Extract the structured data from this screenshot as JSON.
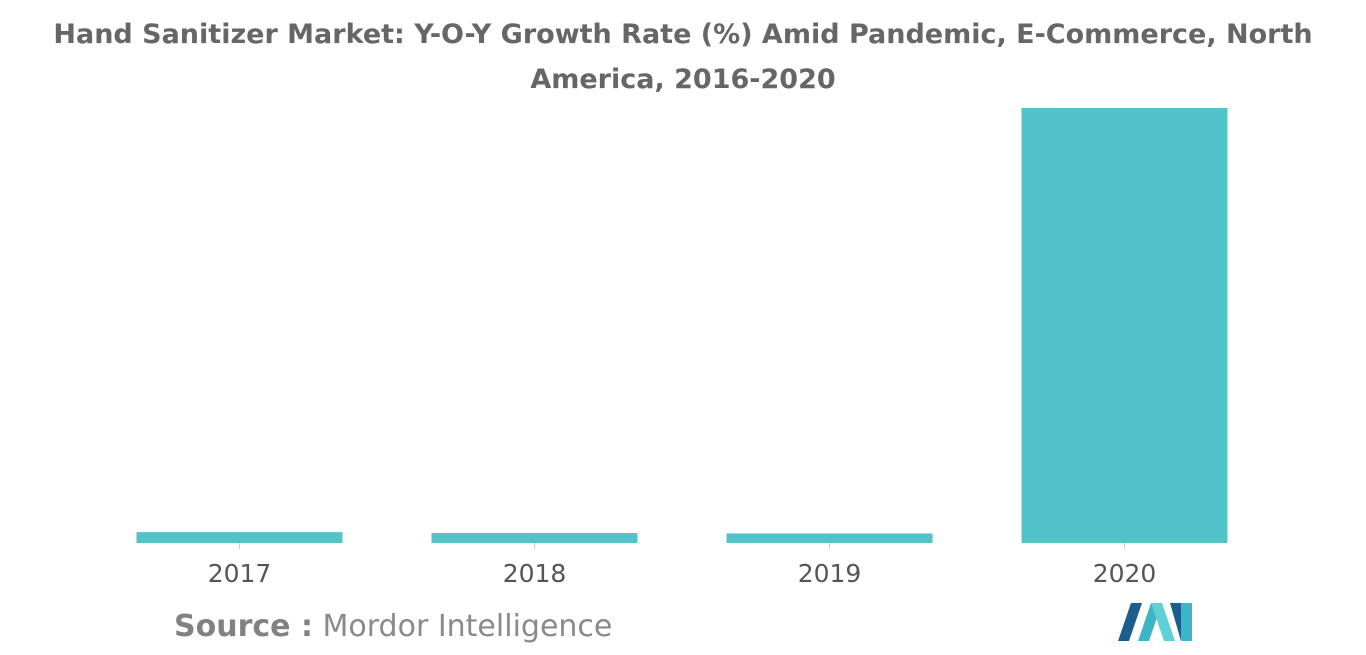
{
  "title": "Hand Sanitizer Market: Y-O-Y Growth Rate (%) Amid Pandemic, E-Commerce, North America, 2016-2020",
  "source": {
    "label": "Source :",
    "value": "Mordor Intelligence"
  },
  "logo": {
    "icon": "mordor-intelligence-logo",
    "colors": [
      "#1b5e8e",
      "#3cb6c6",
      "#5fcfd8"
    ]
  },
  "colors": {
    "bar": "#52c3c9",
    "axis_line": "#cccccc",
    "tick_text": "#555555",
    "title_text": "#666666"
  },
  "chart_data": {
    "type": "bar",
    "title": "Hand Sanitizer Market: Y-O-Y Growth Rate (%) Amid Pandemic, E-Commerce, North America, 2016-2020",
    "xlabel": "",
    "ylabel": "",
    "categories": [
      "2017",
      "2018",
      "2019",
      "2020"
    ],
    "values": [
      2.5,
      2.3,
      2.2,
      100
    ],
    "ylim": [
      0,
      100
    ],
    "y_axis_visible": false,
    "grid": false,
    "legend": "none"
  }
}
